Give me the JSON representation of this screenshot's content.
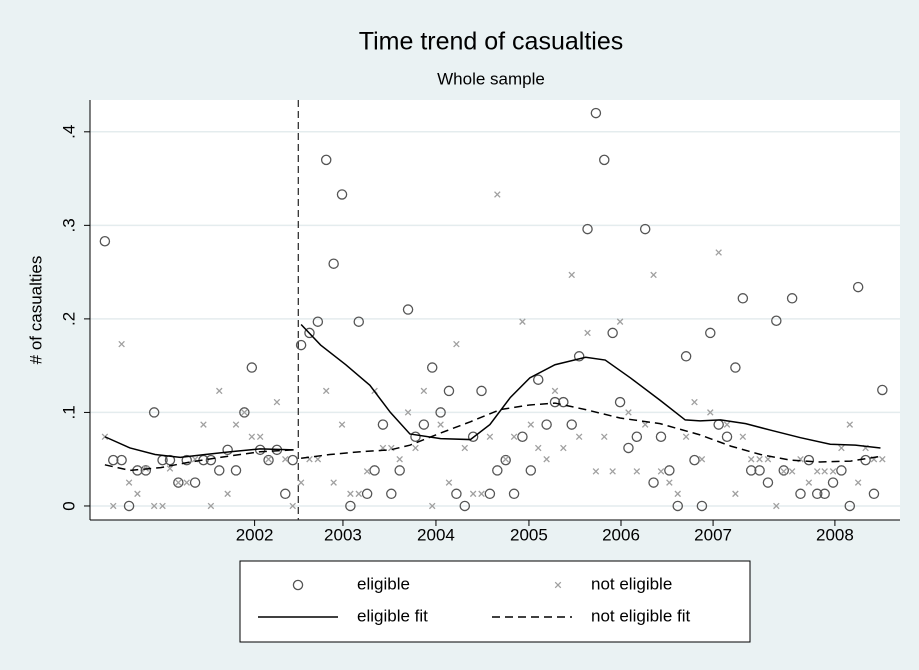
{
  "chart_data": {
    "type": "scatter",
    "title": "Time trend of casualties",
    "subtitle": "Whole sample",
    "y_label": "# of casualties",
    "xlim": [
      2000.76,
      2009.47
    ],
    "ylim": [
      -0.015,
      0.434
    ],
    "xticks": [
      {
        "value": 2002.53,
        "label": "2002"
      },
      {
        "value": 2003.48,
        "label": "2003"
      },
      {
        "value": 2004.48,
        "label": "2004"
      },
      {
        "value": 2005.48,
        "label": "2005"
      },
      {
        "value": 2006.47,
        "label": "2006"
      },
      {
        "value": 2007.46,
        "label": "2007"
      },
      {
        "value": 2008.77,
        "label": "2008"
      }
    ],
    "yticks": [
      0,
      {
        "value": 0.1,
        "label": ".1"
      },
      {
        "value": 0.2,
        "label": ".2"
      },
      {
        "value": 0.3,
        "label": ".3"
      },
      {
        "value": 0.4,
        "label": ".4"
      }
    ],
    "grid": true,
    "vline": 2003,
    "legend": "bottom",
    "series": [
      {
        "name": "eligible",
        "kind": "circle",
        "color": "#555555",
        "x": [
          2000.92,
          2001.01,
          2001.1,
          2001.18,
          2001.27,
          2001.36,
          2001.45,
          2001.54,
          2001.62,
          2001.71,
          2001.8,
          2001.89,
          2001.98,
          2002.06,
          2002.15,
          2002.24,
          2002.33,
          2002.42,
          2002.5,
          2002.59,
          2002.68,
          2002.77,
          2002.86,
          2002.94,
          2003.03,
          2003.12,
          2003.21,
          2003.3,
          2003.38,
          2003.47,
          2003.56,
          2003.65,
          2003.74,
          2003.82,
          2003.91,
          2004.0,
          2004.09,
          2004.18,
          2004.26,
          2004.35,
          2004.44,
          2004.53,
          2004.62,
          2004.7,
          2004.79,
          2004.88,
          2004.97,
          2005.06,
          2005.14,
          2005.23,
          2005.32,
          2005.41,
          2005.5,
          2005.58,
          2005.67,
          2005.76,
          2005.85,
          2005.94,
          2006.02,
          2006.11,
          2006.2,
          2006.29,
          2006.38,
          2006.46,
          2006.55,
          2006.64,
          2006.73,
          2006.82,
          2006.9,
          2006.99,
          2007.08,
          2007.17,
          2007.26,
          2007.34,
          2007.43,
          2007.52,
          2007.61,
          2007.7,
          2007.78,
          2007.87,
          2007.96,
          2008.05,
          2008.14,
          2008.22,
          2008.31,
          2008.4,
          2008.49,
          2008.58,
          2008.66,
          2008.75,
          2008.84,
          2008.93,
          2009.02,
          2009.1,
          2009.19,
          2009.28
        ],
        "values": [
          0.283,
          0.049,
          0.049,
          0,
          0.038,
          0.038,
          0.1,
          0.049,
          0.049,
          0.025,
          0.049,
          0.025,
          0.049,
          0.049,
          0.038,
          0.06,
          0.038,
          0.1,
          0.148,
          0.06,
          0.049,
          0.06,
          0.013,
          0.049,
          0.172,
          0.185,
          0.197,
          0.37,
          0.259,
          0.333,
          0,
          0.197,
          0.013,
          0.038,
          0.087,
          0.013,
          0.038,
          0.21,
          0.074,
          0.087,
          0.148,
          0.1,
          0.123,
          0.013,
          0,
          0.074,
          0.123,
          0.013,
          0.038,
          0.049,
          0.013,
          0.074,
          0.038,
          0.135,
          0.087,
          0.111,
          0.111,
          0.087,
          0.16,
          0.296,
          0.42,
          0.37,
          0.185,
          0.111,
          0.062,
          0.074,
          0.296,
          0.025,
          0.074,
          0.038,
          0,
          0.16,
          0.049,
          0,
          0.185,
          0.087,
          0.074,
          0.148,
          0.222,
          0.038,
          0.038,
          0.025,
          0.198,
          0.038,
          0.222,
          0.013,
          0.049,
          0.013,
          0.013,
          0.025,
          0.038,
          0,
          0.234,
          0.049,
          0.013,
          0.124
        ]
      },
      {
        "name": "not eligible",
        "kind": "cross",
        "color": "#a0a0a0",
        "x": [
          2000.92,
          2001.01,
          2001.1,
          2001.18,
          2001.27,
          2001.36,
          2001.45,
          2001.54,
          2001.62,
          2001.71,
          2001.8,
          2001.89,
          2001.98,
          2002.06,
          2002.15,
          2002.24,
          2002.33,
          2002.42,
          2002.5,
          2002.59,
          2002.68,
          2002.77,
          2002.86,
          2002.94,
          2003.03,
          2003.12,
          2003.21,
          2003.3,
          2003.38,
          2003.47,
          2003.56,
          2003.65,
          2003.74,
          2003.82,
          2003.91,
          2004.0,
          2004.09,
          2004.18,
          2004.26,
          2004.35,
          2004.44,
          2004.53,
          2004.62,
          2004.7,
          2004.79,
          2004.88,
          2004.97,
          2005.06,
          2005.14,
          2005.23,
          2005.32,
          2005.41,
          2005.5,
          2005.58,
          2005.67,
          2005.76,
          2005.85,
          2005.94,
          2006.02,
          2006.11,
          2006.2,
          2006.29,
          2006.38,
          2006.46,
          2006.55,
          2006.64,
          2006.73,
          2006.82,
          2006.9,
          2006.99,
          2007.08,
          2007.17,
          2007.26,
          2007.34,
          2007.43,
          2007.52,
          2007.61,
          2007.7,
          2007.78,
          2007.87,
          2007.96,
          2008.05,
          2008.14,
          2008.22,
          2008.31,
          2008.4,
          2008.49,
          2008.58,
          2008.66,
          2008.75,
          2008.84,
          2008.93,
          2009.02,
          2009.1,
          2009.19,
          2009.28
        ],
        "values": [
          0.074,
          0,
          0.173,
          0.025,
          0.013,
          0.04,
          0,
          0,
          0.04,
          0.025,
          0.025,
          0.05,
          0.087,
          0,
          0.123,
          0.013,
          0.087,
          0.1,
          0.074,
          0.074,
          0.05,
          0.111,
          0.05,
          0,
          0.025,
          0.05,
          0.05,
          0.123,
          0.025,
          0.087,
          0.013,
          0.013,
          0.037,
          0.123,
          0.062,
          0.062,
          0.05,
          0.1,
          0.062,
          0.123,
          0,
          0.087,
          0.025,
          0.173,
          0.062,
          0.013,
          0.013,
          0.074,
          0.333,
          0.05,
          0.074,
          0.197,
          0.087,
          0.062,
          0.05,
          0.123,
          0.062,
          0.247,
          0.074,
          0.185,
          0.037,
          0.074,
          0.037,
          0.197,
          0.1,
          0.037,
          0.087,
          0.247,
          0.037,
          0.025,
          0.013,
          0.074,
          0.111,
          0.05,
          0.1,
          0.271,
          0.087,
          0.013,
          0.074,
          0.05,
          0.05,
          0.05,
          0,
          0.037,
          0.037,
          0.05,
          0.025,
          0.037,
          0.037,
          0.037,
          0.062,
          0.087,
          0.025,
          0.062,
          0.05,
          0.05
        ]
      },
      {
        "name": "eligible fit",
        "kind": "line",
        "color": "#000000",
        "x": [
          2000.92,
          2001.19,
          2001.46,
          2001.73,
          2002.0,
          2002.27,
          2002.59,
          2002.95,
          null,
          2003.03,
          2003.24,
          2003.51,
          2003.77,
          2003.99,
          2004.2,
          2004.53,
          2004.85,
          2005.06,
          2005.28,
          2005.49,
          2005.76,
          2006.09,
          2006.3,
          2006.57,
          2006.89,
          2007.16,
          2007.32,
          2007.54,
          2007.81,
          2008.08,
          2008.4,
          2008.72,
          2008.99,
          2009.26
        ],
        "values": [
          0.074,
          0.062,
          0.055,
          0.052,
          0.055,
          0.058,
          0.061,
          0.06,
          null,
          0.194,
          0.172,
          0.151,
          0.129,
          0.1,
          0.077,
          0.072,
          0.071,
          0.087,
          0.116,
          0.137,
          0.151,
          0.159,
          0.156,
          0.137,
          0.113,
          0.092,
          0.091,
          0.092,
          0.088,
          0.081,
          0.073,
          0.066,
          0.065,
          0.062
        ]
      },
      {
        "name": "not eligible fit",
        "kind": "dashed",
        "color": "#000000",
        "x": [
          2000.92,
          2001.19,
          2001.52,
          2001.84,
          2002.16,
          2002.59,
          2002.95,
          null,
          2003.03,
          2003.34,
          2003.67,
          2003.99,
          2004.2,
          2004.53,
          2004.85,
          2005.17,
          2005.49,
          2005.76,
          2006.09,
          2006.46,
          2006.89,
          2007.32,
          2007.65,
          2007.97,
          2008.29,
          2008.61,
          2008.94,
          2009.26
        ],
        "values": [
          0.044,
          0.038,
          0.041,
          0.047,
          0.052,
          0.058,
          0.06,
          null,
          0.051,
          0.055,
          0.058,
          0.06,
          0.065,
          0.078,
          0.09,
          0.103,
          0.108,
          0.11,
          0.103,
          0.094,
          0.088,
          0.076,
          0.064,
          0.055,
          0.049,
          0.047,
          0.048,
          0.053
        ]
      }
    ]
  }
}
